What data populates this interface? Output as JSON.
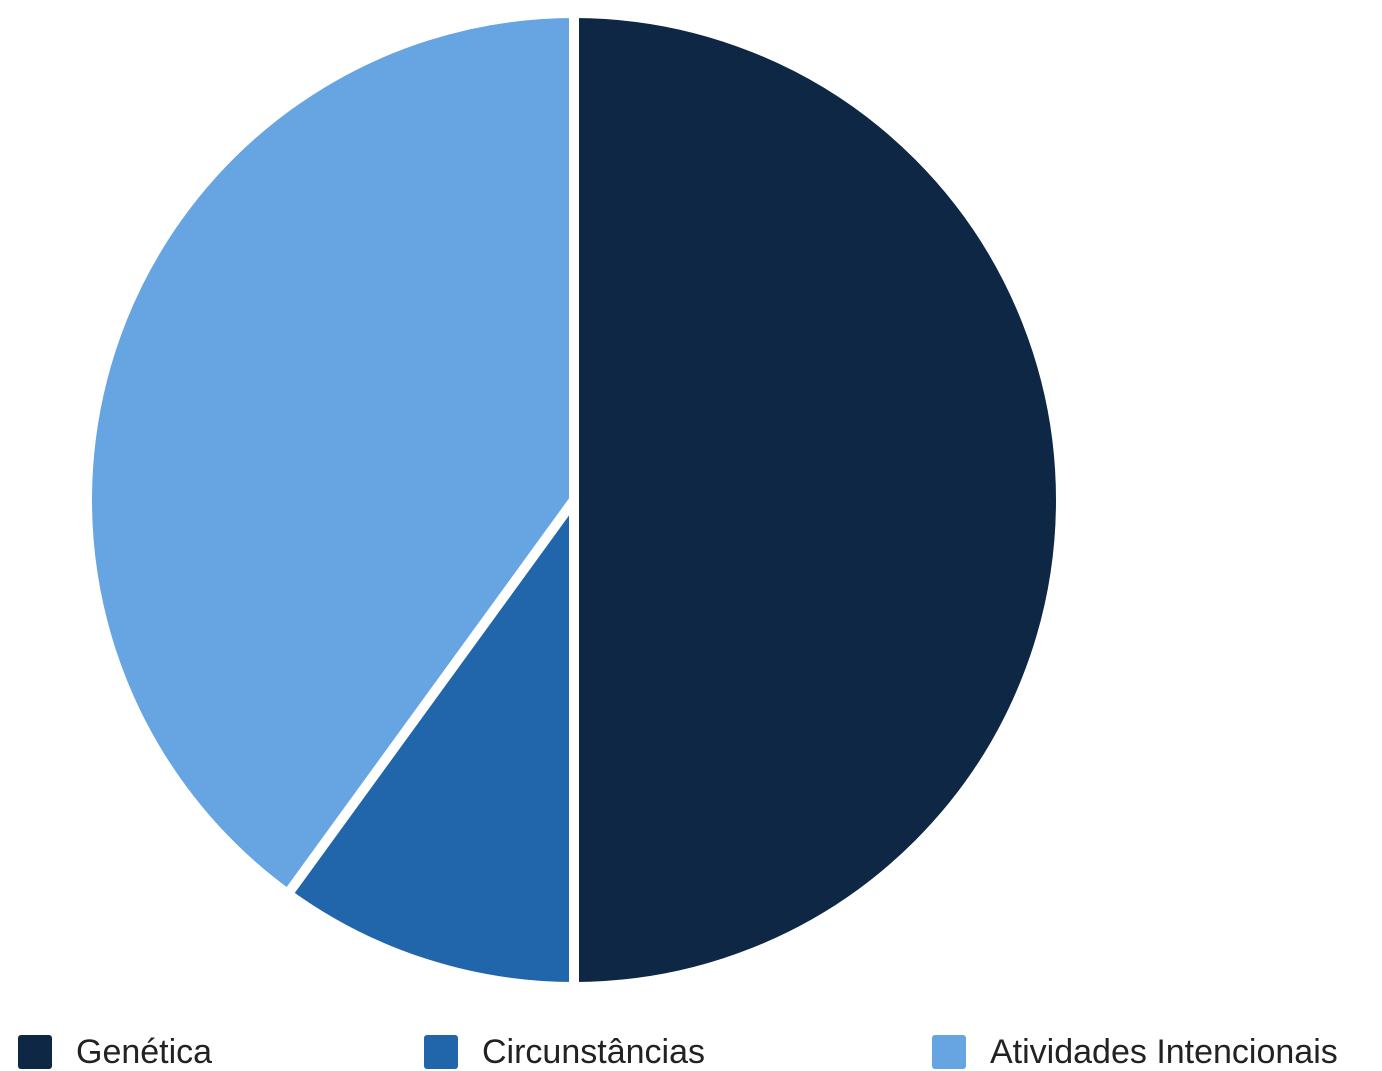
{
  "chart_data": {
    "type": "pie",
    "categories": [
      "Genética",
      "Circunstâncias",
      "Atividades Intencionais"
    ],
    "values": [
      50,
      10,
      40
    ],
    "unit": "%",
    "colors": [
      "#0d2744",
      "#2166ab",
      "#66a4e2"
    ],
    "legend_position": "bottom",
    "start_angle": "12 o'clock",
    "direction": "clockwise"
  },
  "legend": {
    "items": [
      {
        "label": "Genética",
        "color": "#0d2744"
      },
      {
        "label": "Circunstâncias",
        "color": "#2166ab"
      },
      {
        "label": "Atividades Intencionais",
        "color": "#66a4e2"
      }
    ]
  }
}
